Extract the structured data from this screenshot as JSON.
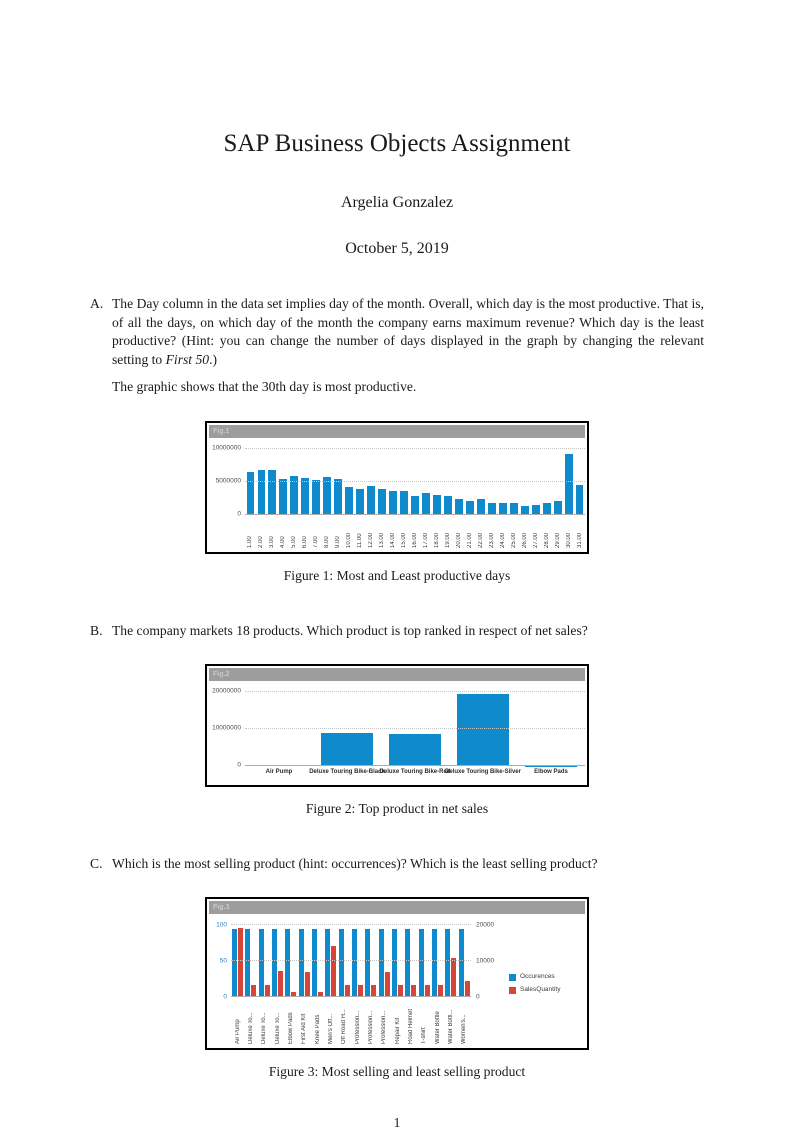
{
  "page": {
    "title": "SAP Business Objects Assignment",
    "author": "Argelia Gonzalez",
    "date": "October 5, 2019",
    "page_number": "1"
  },
  "questions": [
    {
      "label": "A.",
      "text1": "The Day column in the data set implies day of the month. Overall, which day is the most productive. That is, of all the days, on which day of the month the company earns maximum revenue? Which day is the least productive? (Hint: you can change the number of days displayed in the graph by changing the relevant setting to ",
      "italic": "First 50",
      "text2": ".)",
      "answer": "The graphic shows that the 30th day is most productive."
    },
    {
      "label": "B.",
      "text1": "The company markets 18 products. Which product is top ranked in respect of net sales?",
      "italic": "",
      "text2": ""
    },
    {
      "label": "C.",
      "text1": "Which is the most selling product (hint: occurrences)? Which is the least selling product?",
      "italic": "",
      "text2": ""
    }
  ],
  "figures": [
    {
      "header": "Fig.1",
      "caption": "Figure 1: Most and Least productive days"
    },
    {
      "header": "Fig.2",
      "caption": "Figure 2: Top product in net sales"
    },
    {
      "header": "Fig.3",
      "caption": "Figure 3: Most selling and least selling product"
    }
  ],
  "colors": {
    "bar_blue": "#0f8bcd",
    "bar_red": "#d6453a",
    "chart_header_bg": "#9d9d9d",
    "chart_header_text": "#c9c9c9"
  },
  "chart_data": [
    {
      "type": "bar",
      "title": "Fig.1",
      "categories": [
        "1.00",
        "2.00",
        "3.00",
        "4.00",
        "5.00",
        "6.00",
        "7.00",
        "8.00",
        "9.00",
        "10.00",
        "11.00",
        "12.00",
        "13.00",
        "14.00",
        "15.00",
        "16.00",
        "17.00",
        "18.00",
        "19.00",
        "20.00",
        "21.00",
        "22.00",
        "23.00",
        "24.00",
        "25.00",
        "26.00",
        "27.00",
        "28.00",
        "29.00",
        "30.00",
        "31.00"
      ],
      "values": [
        6500000,
        6800000,
        6800000,
        5500000,
        5900000,
        5600000,
        5300000,
        5700000,
        5400000,
        4300000,
        4000000,
        4400000,
        4000000,
        3700000,
        3600000,
        2900000,
        3300000,
        3100000,
        2900000,
        2500000,
        2200000,
        2400000,
        1900000,
        1900000,
        1850000,
        1400000,
        1600000,
        1800000,
        2100000,
        9300000,
        4500000
      ],
      "xlabel": "",
      "ylabel": "",
      "ylim": [
        0,
        10000000
      ],
      "yticks": [
        0,
        5000000,
        10000000
      ],
      "bar_color": "#0f8bcd",
      "grid": true,
      "x_labels_rotated": true
    },
    {
      "type": "bar",
      "title": "Fig.2",
      "categories": [
        "Air Pump",
        "Deluxe Touring Bike-Black",
        "Deluxe Touring Bike-Red",
        "Deluxe Touring Bike-Silver",
        "Elbow Pads"
      ],
      "values": [
        350000,
        9000000,
        8600000,
        19500000,
        150000
      ],
      "xlabel": "",
      "ylabel": "",
      "ylim": [
        0,
        20000000
      ],
      "yticks": [
        0,
        10000000,
        20000000
      ],
      "bar_color": "#0f8bcd",
      "grid": true,
      "x_labels_rotated": false
    },
    {
      "type": "bar",
      "title": "Fig.3",
      "categories": [
        "Air Pump",
        "Deluxe To...",
        "Deluxe To...",
        "Deluxe To...",
        "Elbow Pads",
        "First Aid Kit",
        "Knee Pads",
        "Men's Off...",
        "Off Road H...",
        "Profession...",
        "Profession...",
        "Profession...",
        "Repair Kit",
        "Road Helmet",
        "T-shirt",
        "Water Bottle",
        "Water Bottl...",
        "Women's..."
      ],
      "series": [
        {
          "name": "Occurences",
          "axis": "left",
          "color": "#0f8bcd",
          "values": [
            95,
            95,
            95,
            95,
            95,
            95,
            95,
            95,
            95,
            95,
            95,
            95,
            95,
            95,
            95,
            95,
            95,
            95
          ]
        },
        {
          "name": "SalesQuantity",
          "axis": "right",
          "color": "#d6453a",
          "values": [
            19400,
            3400,
            3400,
            7400,
            1400,
            7000,
            1400,
            14400,
            3400,
            3400,
            3400,
            7000,
            3400,
            3400,
            3400,
            3400,
            11000,
            4600
          ]
        }
      ],
      "left_axis": {
        "lim": [
          0,
          100
        ],
        "ticks": [
          0,
          50,
          100
        ]
      },
      "right_axis": {
        "lim": [
          0,
          20000
        ],
        "ticks": [
          0,
          10000,
          20000
        ]
      },
      "legend": [
        "Occurences",
        "SalesQuantity"
      ],
      "legend_position": "right",
      "grid": true,
      "x_labels_rotated": true
    }
  ]
}
